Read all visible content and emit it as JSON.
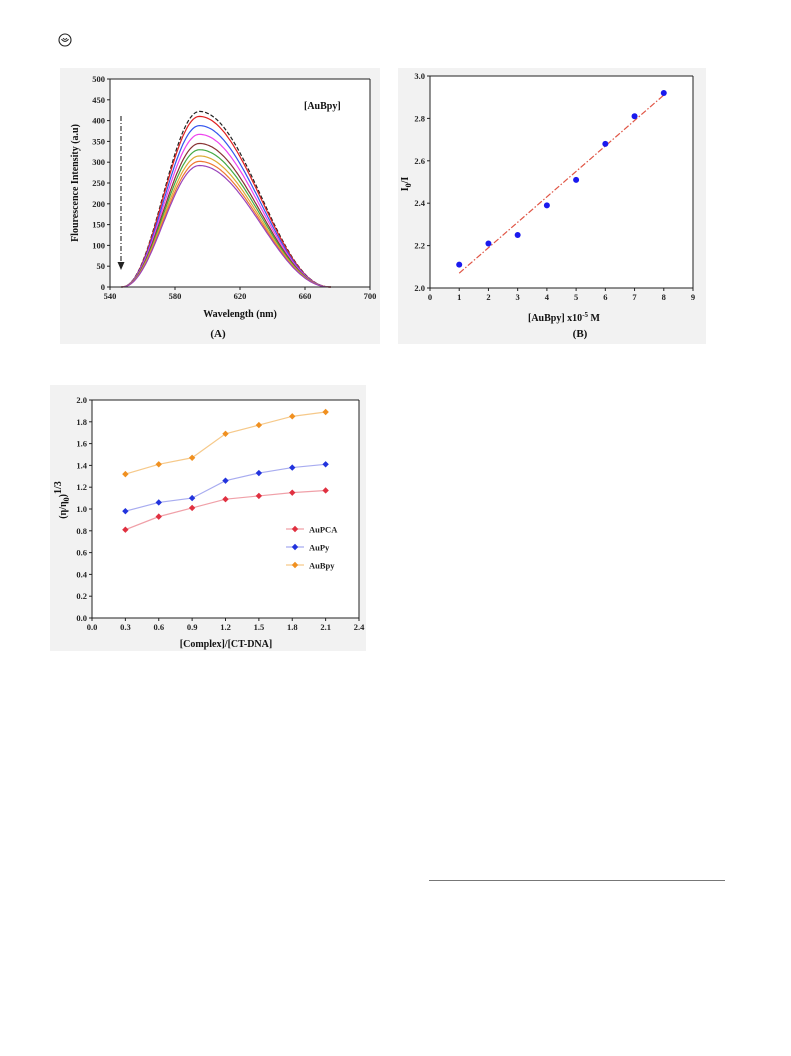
{
  "page": {
    "logo_icon": "journal-logo-icon"
  },
  "chart_data": [
    {
      "type": "line",
      "title": "",
      "legend_text": "[AuBpy]",
      "xlabel": "Wavelength (nm)",
      "ylabel": "Flourescence Intensity (a.u)",
      "panel_label": "(A)",
      "xlim": [
        540,
        700
      ],
      "ylim": [
        0,
        500
      ],
      "x_ticks": [
        "540",
        "580",
        "620",
        "660",
        "700"
      ],
      "y_ticks": [
        "0",
        "50",
        "100",
        "150",
        "200",
        "250",
        "300",
        "350",
        "400",
        "450",
        "500"
      ],
      "arrow_direction": "down",
      "emission": {
        "start": 547,
        "peak": 595,
        "end": 676
      },
      "series": [
        {
          "peak": 422,
          "color": "#222222",
          "dashed": true
        },
        {
          "peak": 410,
          "color": "#e02020"
        },
        {
          "peak": 388,
          "color": "#3355ee"
        },
        {
          "peak": 367,
          "color": "#ee44ee"
        },
        {
          "peak": 345,
          "color": "#883333"
        },
        {
          "peak": 330,
          "color": "#44aa44"
        },
        {
          "peak": 315,
          "color": "#ddaa33"
        },
        {
          "peak": 302,
          "color": "#ee7733"
        },
        {
          "peak": 292,
          "color": "#9944bb"
        }
      ]
    },
    {
      "type": "scatter",
      "title": "",
      "xlabel_main": "[AuBpy] x10",
      "xlabel_exp": "-5",
      "xlabel_unit": " M",
      "ylabel_main": "I",
      "ylabel_sub": "0",
      "ylabel_end": "/I",
      "panel_label": "(B)",
      "xlim": [
        0,
        9
      ],
      "ylim": [
        2.0,
        3.0
      ],
      "x_ticks": [
        "0",
        "1",
        "2",
        "3",
        "4",
        "5",
        "6",
        "7",
        "8",
        "9"
      ],
      "y_ticks": [
        "2.0",
        "2.2",
        "2.4",
        "2.6",
        "2.8",
        "3.0"
      ],
      "x": [
        1,
        2,
        3,
        4,
        5,
        6,
        7,
        8
      ],
      "y": [
        2.11,
        2.21,
        2.25,
        2.39,
        2.51,
        2.68,
        2.81,
        2.92
      ],
      "point_color": "#1a1aee",
      "fit_line": {
        "x": [
          1,
          8
        ],
        "y": [
          2.07,
          2.91
        ],
        "color": "#e05545"
      }
    },
    {
      "type": "line",
      "title": "",
      "xlabel": "[Complex]/[CT-DNA]",
      "ylabel_main": "(η/η",
      "ylabel_sub": "0",
      "ylabel_end": ")",
      "ylabel_exp": "1/3",
      "xlim": [
        0.0,
        2.4
      ],
      "ylim": [
        0.0,
        2.0
      ],
      "x_ticks": [
        "0.0",
        "0.3",
        "0.6",
        "0.9",
        "1.2",
        "1.5",
        "1.8",
        "2.1",
        "2.4"
      ],
      "y_ticks": [
        "0.0",
        "0.2",
        "0.4",
        "0.6",
        "0.8",
        "1.0",
        "1.2",
        "1.4",
        "1.6",
        "1.8",
        "2.0"
      ],
      "x": [
        0.3,
        0.6,
        0.9,
        1.2,
        1.5,
        1.8,
        2.1
      ],
      "legend_position": "right",
      "series": [
        {
          "name": "AuPCA",
          "values": [
            0.81,
            0.93,
            1.01,
            1.09,
            1.12,
            1.15,
            1.17
          ],
          "color": "#e03040",
          "line_color": "#f0a0a8"
        },
        {
          "name": "AuPy",
          "values": [
            0.98,
            1.06,
            1.1,
            1.26,
            1.33,
            1.38,
            1.41
          ],
          "color": "#2233dd",
          "line_color": "#a8acf0"
        },
        {
          "name": "AuBpy",
          "values": [
            1.32,
            1.41,
            1.47,
            1.69,
            1.77,
            1.85,
            1.89
          ],
          "color": "#f09020",
          "line_color": "#f6c98a"
        }
      ]
    }
  ]
}
